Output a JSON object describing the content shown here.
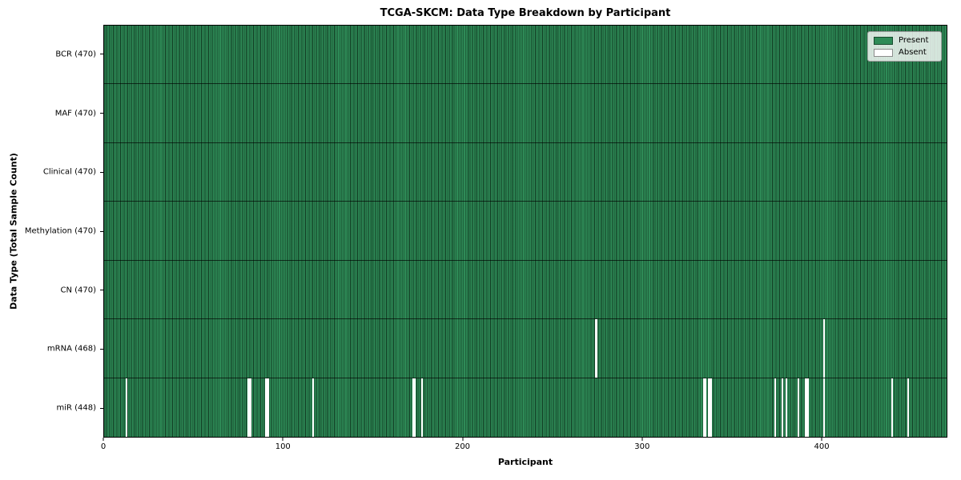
{
  "figure": {
    "title": "TCGA-SKCM: Data Type Breakdown by Participant",
    "xlabel": "Participant",
    "ylabel": "Data Type (Total Sample Count)"
  },
  "legend": {
    "items": [
      {
        "label": "Present",
        "color": "#2E8B57"
      },
      {
        "label": "Absent",
        "color": "#FFFFFF"
      }
    ]
  },
  "chart_data": {
    "type": "heatmap",
    "title": "TCGA-SKCM: Data Type Breakdown by Participant",
    "xlabel": "Participant",
    "ylabel": "Data Type (Total Sample Count)",
    "x_ticks": [
      0,
      100,
      200,
      300,
      400
    ],
    "n_participants": 470,
    "present_color": "#2E8B57",
    "absent_color": "#FFFFFF",
    "legend_position": "upper right",
    "rows": [
      {
        "data_type": "BCR",
        "label": "BCR (470)",
        "present_count": 470,
        "absent_participants": []
      },
      {
        "data_type": "MAF",
        "label": "MAF (470)",
        "present_count": 470,
        "absent_participants": []
      },
      {
        "data_type": "Clinical",
        "label": "Clinical (470)",
        "present_count": 470,
        "absent_participants": []
      },
      {
        "data_type": "Methylation",
        "label": "Methylation (470)",
        "present_count": 470,
        "absent_participants": []
      },
      {
        "data_type": "CN",
        "label": "CN (470)",
        "present_count": 470,
        "absent_participants": []
      },
      {
        "data_type": "mRNA",
        "label": "mRNA (468)",
        "present_count": 468,
        "absent_participants": [
          274,
          401
        ]
      },
      {
        "data_type": "miR",
        "label": "miR (448)",
        "present_count": 448,
        "absent_participants": [
          12,
          80,
          81,
          90,
          91,
          116,
          172,
          173,
          177,
          334,
          335,
          337,
          338,
          374,
          378,
          380,
          387,
          391,
          392,
          401,
          439,
          448
        ]
      }
    ]
  }
}
